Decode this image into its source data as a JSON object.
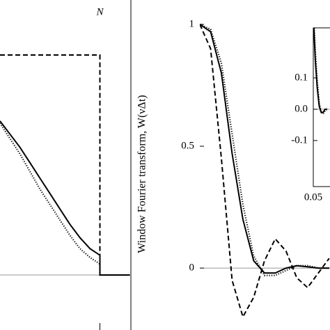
{
  "chart_data": [
    {
      "type": "line",
      "x": [
        0,
        0.1,
        0.2,
        0.3,
        0.4,
        0.5,
        0.6,
        0.7,
        0.8,
        0.9,
        1,
        1,
        1.1,
        1.2,
        1.3
      ],
      "series": [
        {
          "style": "dashed",
          "color": "#000",
          "values": [
            1,
            1,
            1,
            1,
            1,
            1,
            1,
            1,
            1,
            1,
            1,
            0,
            0,
            0,
            0
          ]
        },
        {
          "style": "solid",
          "color": "#000",
          "values": [
            0.7,
            0.64,
            0.58,
            0.51,
            0.44,
            0.37,
            0.3,
            0.23,
            0.17,
            0.12,
            0.09,
            0,
            0,
            0,
            0
          ]
        },
        {
          "style": "dotted",
          "color": "#000",
          "values": [
            0.69,
            0.62,
            0.55,
            0.47,
            0.39,
            0.32,
            0.25,
            0.18,
            0.12,
            0.08,
            0.05,
            0,
            0,
            0,
            0
          ]
        }
      ],
      "xlim": [
        0,
        1.31
      ],
      "ylim": [
        -0.25,
        1.25
      ],
      "xticks": [
        {
          "value": 1,
          "label": "N"
        }
      ]
    },
    {
      "type": "line",
      "y_label": "Window Fourier transform,  W(νΔt)",
      "x": [
        0,
        0.25,
        0.5,
        0.75,
        1,
        1.25,
        1.5,
        1.75,
        2,
        2.25,
        2.5,
        2.75,
        3
      ],
      "series": [
        {
          "style": "dashed",
          "color": "#000",
          "values": [
            1,
            0.9,
            0.45,
            -0.05,
            -0.2,
            -0.12,
            0.03,
            0.12,
            0.07,
            -0.04,
            -0.08,
            -0.02,
            0.04
          ]
        },
        {
          "style": "solid",
          "color": "#000",
          "values": [
            1,
            0.97,
            0.8,
            0.47,
            0.2,
            0.03,
            -0.02,
            -0.02,
            0,
            0.01,
            0.005,
            0,
            0
          ]
        },
        {
          "style": "dotted",
          "color": "#000",
          "values": [
            1,
            0.98,
            0.84,
            0.55,
            0.26,
            0.05,
            -0.03,
            -0.03,
            -0.01,
            0.01,
            0.01,
            0,
            0
          ]
        }
      ],
      "xlim": [
        0,
        3.02
      ],
      "ylim": [
        -0.254,
        1.1
      ],
      "yticks": [
        0,
        0.5,
        1
      ]
    },
    {
      "type": "line",
      "x": [
        0.05,
        0.052,
        0.054,
        0.056,
        0.058,
        0.06,
        0.062,
        0.064
      ],
      "series": [
        {
          "style": "solid",
          "color": "#000",
          "values": [
            0.3,
            0.16,
            0.07,
            0.01,
            -0.01,
            -0.01,
            0,
            0
          ]
        },
        {
          "style": "dotted",
          "color": "#000",
          "values": [
            0.32,
            0.19,
            0.09,
            0.02,
            -0.01,
            -0.015,
            -0.005,
            0
          ]
        }
      ],
      "xlim": [
        0.05,
        0.067
      ],
      "ylim": [
        -0.247,
        0.26
      ],
      "yticks": [
        0.1,
        {
          "value": 0,
          "label": "0.0"
        },
        -0.1
      ],
      "xticks": [
        {
          "value": 0.05,
          "label": "0.05"
        }
      ]
    }
  ]
}
